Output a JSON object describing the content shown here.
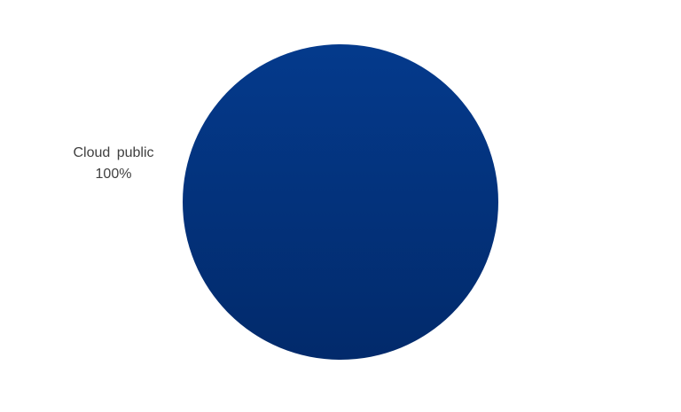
{
  "chart_data": {
    "type": "pie",
    "slices": [
      {
        "label": "Cloud public",
        "value": 100,
        "value_label": "100%",
        "color": "#043a8c"
      }
    ],
    "colors": {
      "slice_top": "#043a8c",
      "slice_bottom": "#022a6b",
      "label_text": "#404040",
      "background": "#ffffff"
    },
    "legend": "none"
  }
}
